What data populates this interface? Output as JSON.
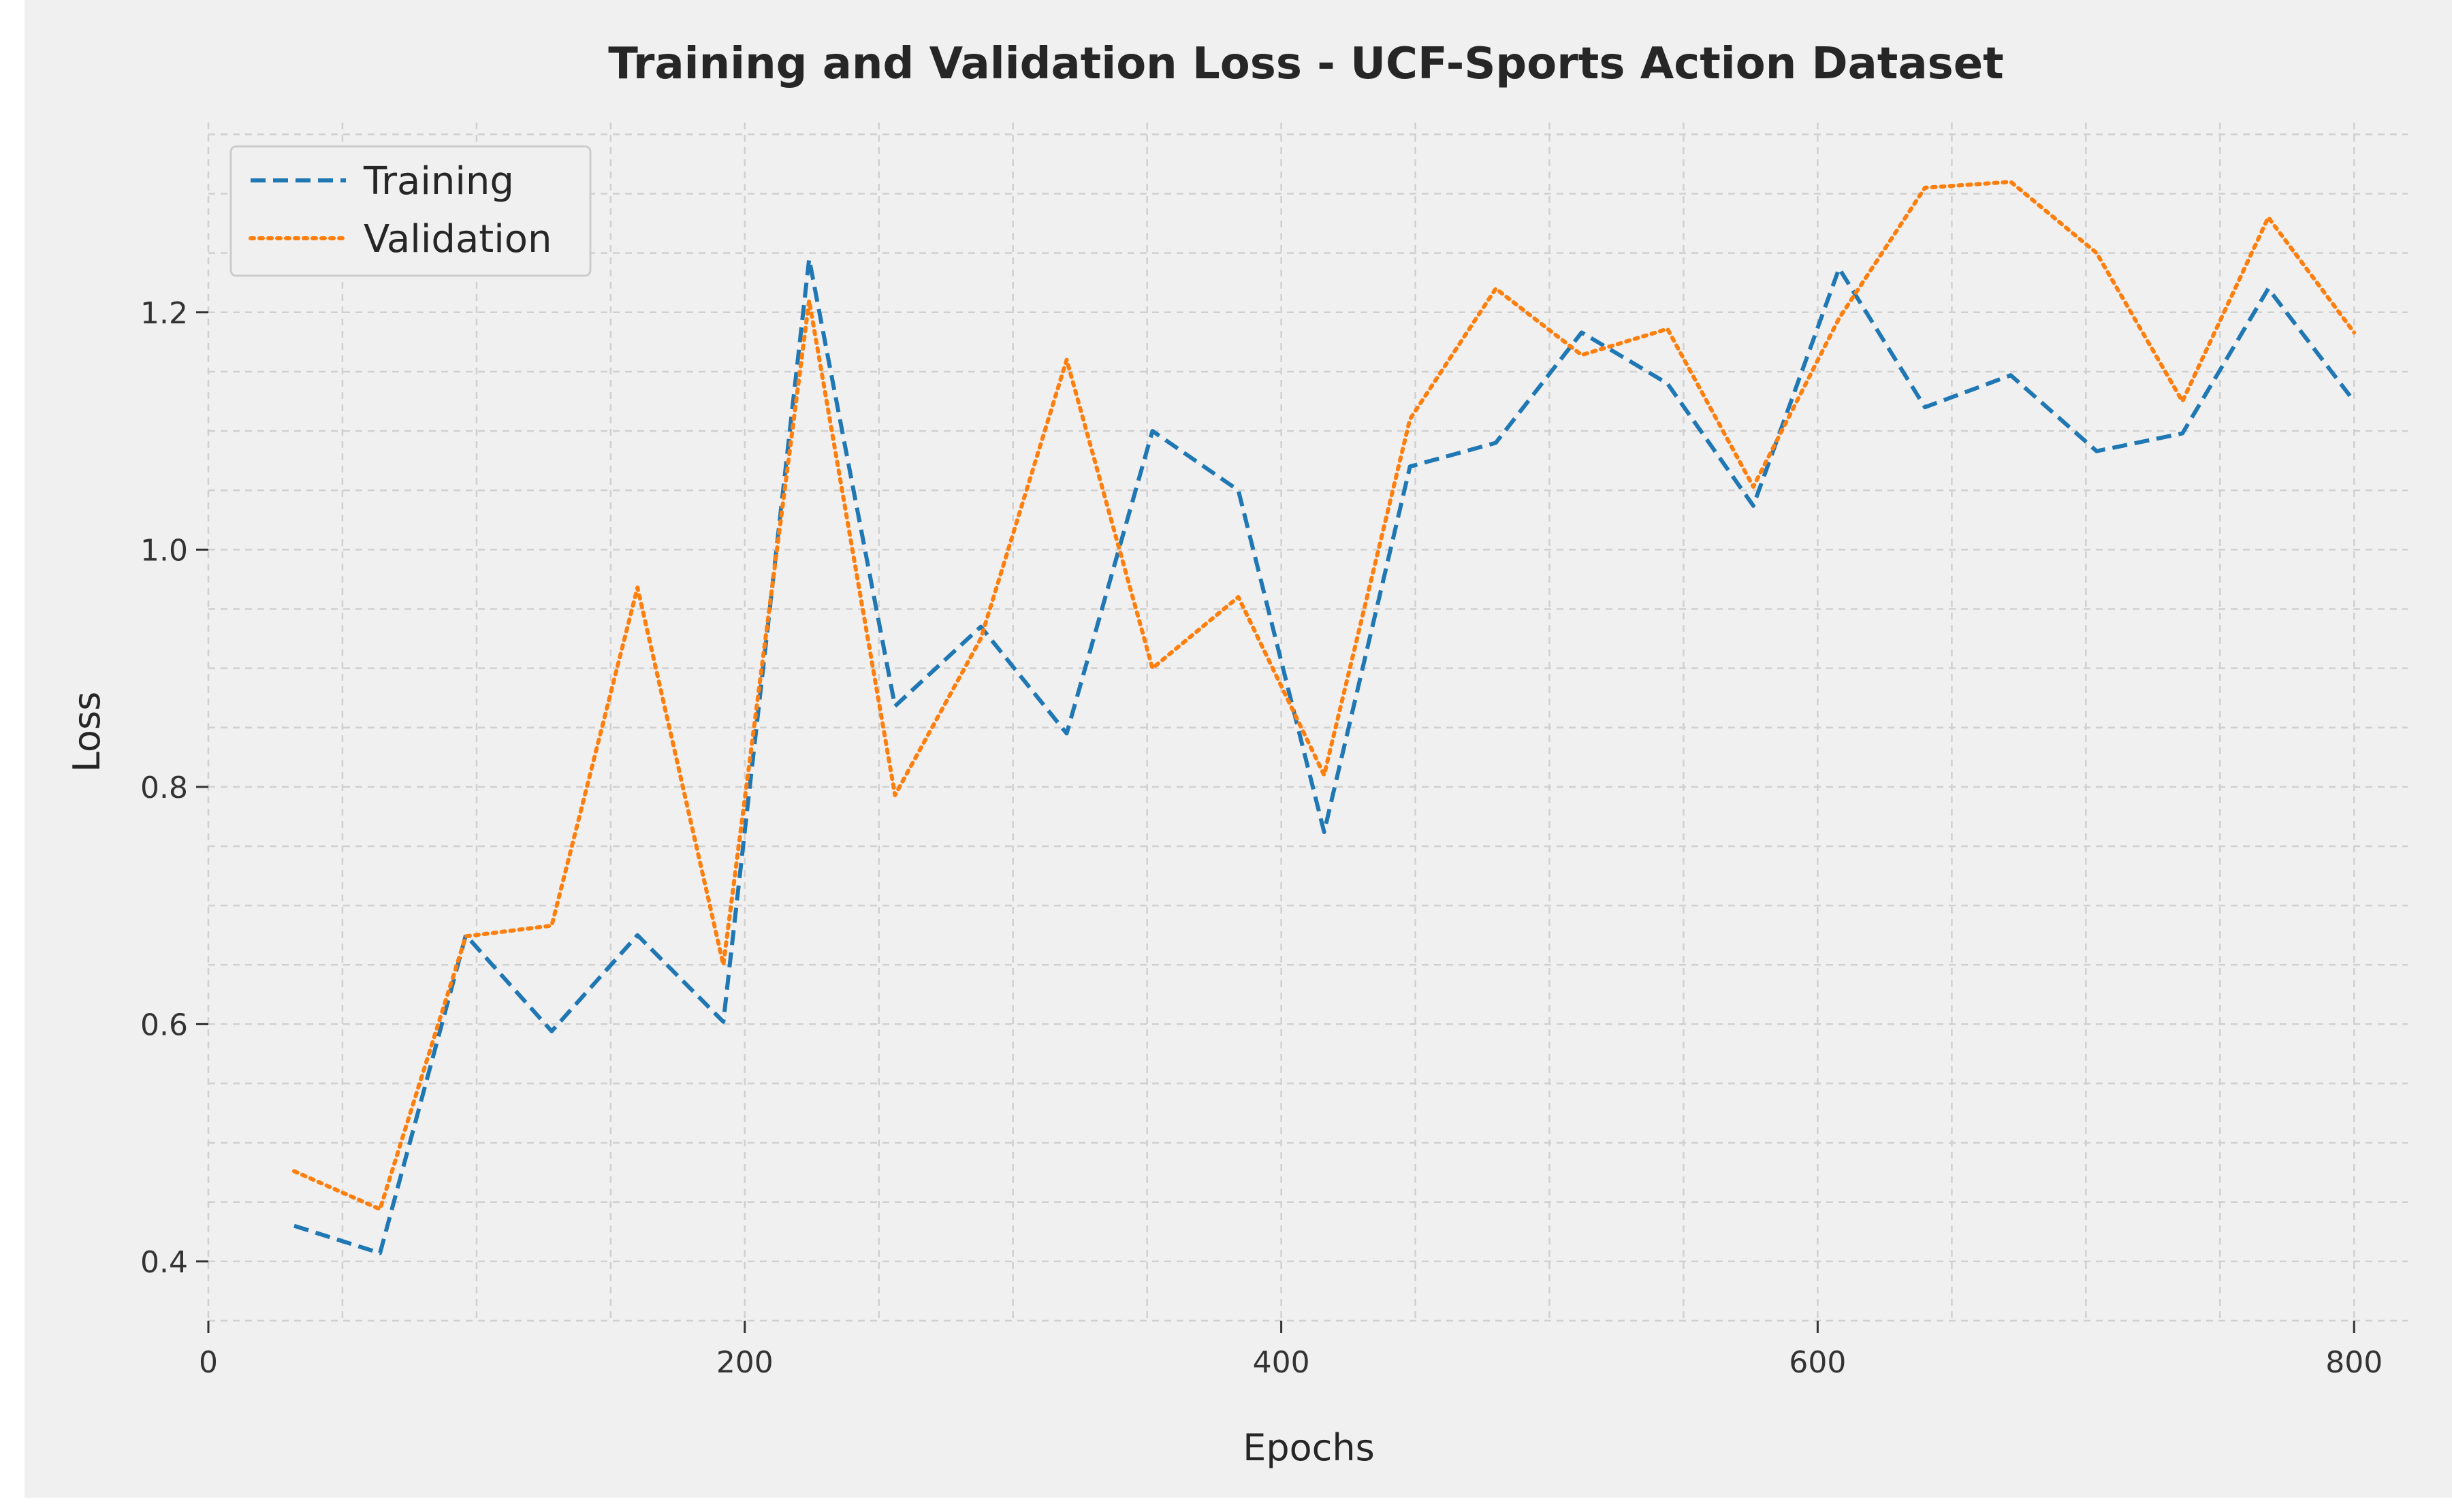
{
  "chart_data": {
    "type": "line",
    "title": "Training and Validation Loss - UCF-Sports Action Dataset",
    "xlabel": "Epochs",
    "ylabel": "Loss",
    "xlim": [
      0,
      820
    ],
    "ylim": [
      0.35,
      1.36
    ],
    "xticks": [
      0,
      200,
      400,
      600,
      800
    ],
    "xtick_labels": [
      "0",
      "200",
      "400",
      "600",
      "800"
    ],
    "yticks": [
      0.4,
      0.6,
      0.8,
      1.0,
      1.2
    ],
    "ytick_labels": [
      "0.4",
      "0.6",
      "0.8",
      "1.0",
      "1.2"
    ],
    "grid": true,
    "legend_position": "top-left",
    "x": [
      32,
      64,
      96,
      128,
      160,
      192,
      224,
      256,
      288,
      320,
      352,
      384,
      416,
      448,
      480,
      512,
      544,
      576,
      608,
      640,
      672,
      704,
      736,
      768,
      800
    ],
    "series": [
      {
        "name": "Training",
        "style": "dashed",
        "color": "#1f77b4",
        "values": [
          0.43,
          0.407,
          0.675,
          0.594,
          0.675,
          0.602,
          1.245,
          0.868,
          0.935,
          0.845,
          1.1,
          1.05,
          0.762,
          1.07,
          1.09,
          1.183,
          1.14,
          1.037,
          1.237,
          1.12,
          1.147,
          1.083,
          1.098,
          1.22,
          1.125
        ]
      },
      {
        "name": "Validation",
        "style": "dotted",
        "color": "#ff7f0e",
        "values": [
          0.476,
          0.444,
          0.674,
          0.683,
          0.968,
          0.65,
          1.21,
          0.793,
          0.925,
          1.16,
          0.9,
          0.96,
          0.81,
          1.11,
          1.22,
          1.164,
          1.186,
          1.053,
          1.195,
          1.305,
          1.31,
          1.25,
          1.125,
          1.28,
          1.183
        ]
      }
    ]
  }
}
